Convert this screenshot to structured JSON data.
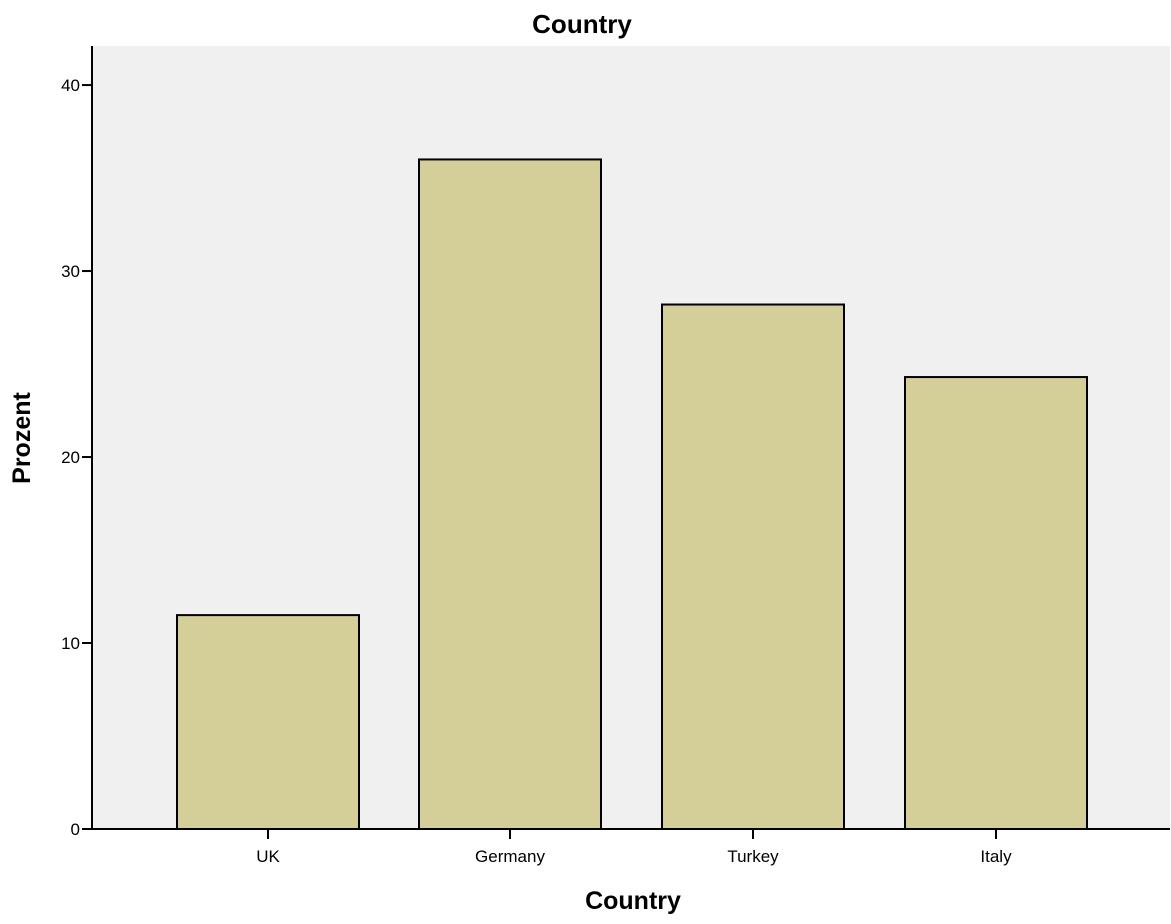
{
  "chart_data": {
    "type": "bar",
    "title": "Country",
    "xlabel": "Country",
    "ylabel": "Prozent",
    "categories": [
      "UK",
      "Germany",
      "Turkey",
      "Italy"
    ],
    "values": [
      11.5,
      36.0,
      28.2,
      24.3
    ],
    "ylim": [
      0,
      42.1
    ],
    "yticks": [
      0,
      10,
      20,
      30,
      40
    ],
    "grid": false,
    "legend": "none",
    "bar_color": "#d4ce98",
    "bar_edge_color": "#000000",
    "plot_background": "#f0f0f0"
  }
}
